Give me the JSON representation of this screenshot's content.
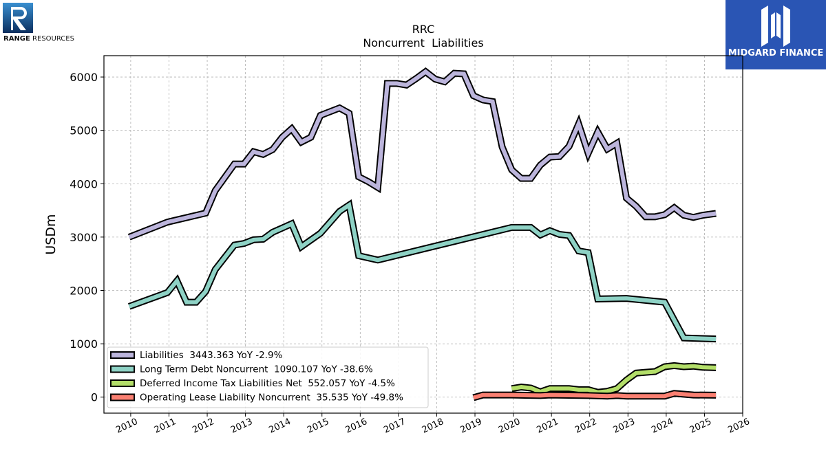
{
  "logos": {
    "left_name": "RANGE",
    "left_sub": "RESOURCES",
    "right_name": "MIDGARD FINANCE"
  },
  "chart_data": {
    "type": "line",
    "title": "RRC",
    "subtitle": "Noncurrent  Liabilities",
    "xlabel": "",
    "ylabel": "USDm",
    "xlim": [
      2009.3,
      2026.0
    ],
    "ylim": [
      -300,
      6400
    ],
    "xticks": [
      "2010",
      "2011",
      "2012",
      "2013",
      "2014",
      "2015",
      "2016",
      "2017",
      "2018",
      "2019",
      "2020",
      "2021",
      "2022",
      "2023",
      "2024",
      "2025",
      "2026"
    ],
    "yticks": [
      "0",
      "1000",
      "2000",
      "3000",
      "4000",
      "5000",
      "6000"
    ],
    "grid": true,
    "legend": "lower-left",
    "series": [
      {
        "name": "Liabilities  3443.363 YoY -2.9%",
        "color": "#bcb5dc",
        "points": [
          [
            2009.96,
            3000
          ],
          [
            2010.96,
            3280
          ],
          [
            2011.96,
            3450
          ],
          [
            2012.21,
            3870
          ],
          [
            2012.71,
            4370
          ],
          [
            2012.96,
            4370
          ],
          [
            2013.21,
            4600
          ],
          [
            2013.46,
            4550
          ],
          [
            2013.71,
            4640
          ],
          [
            2013.96,
            4870
          ],
          [
            2014.21,
            5030
          ],
          [
            2014.46,
            4780
          ],
          [
            2014.71,
            4870
          ],
          [
            2014.96,
            5280
          ],
          [
            2015.46,
            5420
          ],
          [
            2015.71,
            5320
          ],
          [
            2015.96,
            4130
          ],
          [
            2016.21,
            4040
          ],
          [
            2016.46,
            3930
          ],
          [
            2016.71,
            5880
          ],
          [
            2016.96,
            5880
          ],
          [
            2017.21,
            5850
          ],
          [
            2017.46,
            5970
          ],
          [
            2017.71,
            6100
          ],
          [
            2017.96,
            5960
          ],
          [
            2018.21,
            5910
          ],
          [
            2018.46,
            6070
          ],
          [
            2018.71,
            6060
          ],
          [
            2018.96,
            5650
          ],
          [
            2019.21,
            5570
          ],
          [
            2019.46,
            5540
          ],
          [
            2019.71,
            4690
          ],
          [
            2019.96,
            4260
          ],
          [
            2020.21,
            4100
          ],
          [
            2020.46,
            4100
          ],
          [
            2020.71,
            4350
          ],
          [
            2020.96,
            4500
          ],
          [
            2021.21,
            4510
          ],
          [
            2021.46,
            4700
          ],
          [
            2021.71,
            5120
          ],
          [
            2021.96,
            4570
          ],
          [
            2022.21,
            4970
          ],
          [
            2022.46,
            4650
          ],
          [
            2022.71,
            4760
          ],
          [
            2022.96,
            3730
          ],
          [
            2023.21,
            3580
          ],
          [
            2023.46,
            3380
          ],
          [
            2023.71,
            3380
          ],
          [
            2023.96,
            3420
          ],
          [
            2024.21,
            3550
          ],
          [
            2024.46,
            3410
          ],
          [
            2024.71,
            3370
          ],
          [
            2024.96,
            3410
          ],
          [
            2025.3,
            3443
          ]
        ]
      },
      {
        "name": "Long Term Debt Noncurrent  1090.107 YoY -38.6%",
        "color": "#8ed2c5",
        "points": [
          [
            2009.96,
            1700
          ],
          [
            2010.96,
            1960
          ],
          [
            2011.21,
            2180
          ],
          [
            2011.46,
            1780
          ],
          [
            2011.71,
            1780
          ],
          [
            2011.96,
            1980
          ],
          [
            2012.21,
            2390
          ],
          [
            2012.71,
            2850
          ],
          [
            2012.96,
            2880
          ],
          [
            2013.21,
            2950
          ],
          [
            2013.46,
            2960
          ],
          [
            2013.71,
            3090
          ],
          [
            2013.96,
            3170
          ],
          [
            2014.21,
            3250
          ],
          [
            2014.46,
            2820
          ],
          [
            2014.96,
            3070
          ],
          [
            2015.46,
            3480
          ],
          [
            2015.71,
            3600
          ],
          [
            2015.96,
            2650
          ],
          [
            2016.46,
            2570
          ],
          [
            2019.96,
            3180
          ],
          [
            2020.46,
            3180
          ],
          [
            2020.71,
            3040
          ],
          [
            2020.96,
            3120
          ],
          [
            2021.21,
            3050
          ],
          [
            2021.46,
            3030
          ],
          [
            2021.71,
            2740
          ],
          [
            2021.96,
            2710
          ],
          [
            2022.21,
            1840
          ],
          [
            2022.96,
            1850
          ],
          [
            2023.96,
            1780
          ],
          [
            2024.46,
            1110
          ],
          [
            2025.3,
            1090
          ]
        ]
      },
      {
        "name": "Deferred Income Tax Liabilities Net  552.057 YoY -4.5%",
        "color": "#b3de69",
        "points": [
          [
            2019.96,
            160
          ],
          [
            2020.21,
            190
          ],
          [
            2020.46,
            170
          ],
          [
            2020.71,
            100
          ],
          [
            2020.96,
            160
          ],
          [
            2021.21,
            160
          ],
          [
            2021.46,
            160
          ],
          [
            2021.71,
            140
          ],
          [
            2021.96,
            140
          ],
          [
            2022.21,
            90
          ],
          [
            2022.46,
            110
          ],
          [
            2022.71,
            160
          ],
          [
            2022.96,
            320
          ],
          [
            2023.21,
            450
          ],
          [
            2023.71,
            480
          ],
          [
            2023.96,
            570
          ],
          [
            2024.21,
            590
          ],
          [
            2024.46,
            570
          ],
          [
            2024.71,
            580
          ],
          [
            2024.96,
            560
          ],
          [
            2025.3,
            552
          ]
        ]
      },
      {
        "name": "Operating Lease Liability Noncurrent  35.535 YoY -49.8%",
        "color": "#fb8072",
        "points": [
          [
            2018.96,
            -10
          ],
          [
            2019.21,
            40
          ],
          [
            2019.96,
            40
          ],
          [
            2020.71,
            30
          ],
          [
            2020.96,
            40
          ],
          [
            2021.96,
            30
          ],
          [
            2022.46,
            20
          ],
          [
            2022.71,
            30
          ],
          [
            2022.96,
            20
          ],
          [
            2023.96,
            20
          ],
          [
            2024.21,
            70
          ],
          [
            2024.71,
            40
          ],
          [
            2025.3,
            36
          ]
        ]
      }
    ]
  }
}
